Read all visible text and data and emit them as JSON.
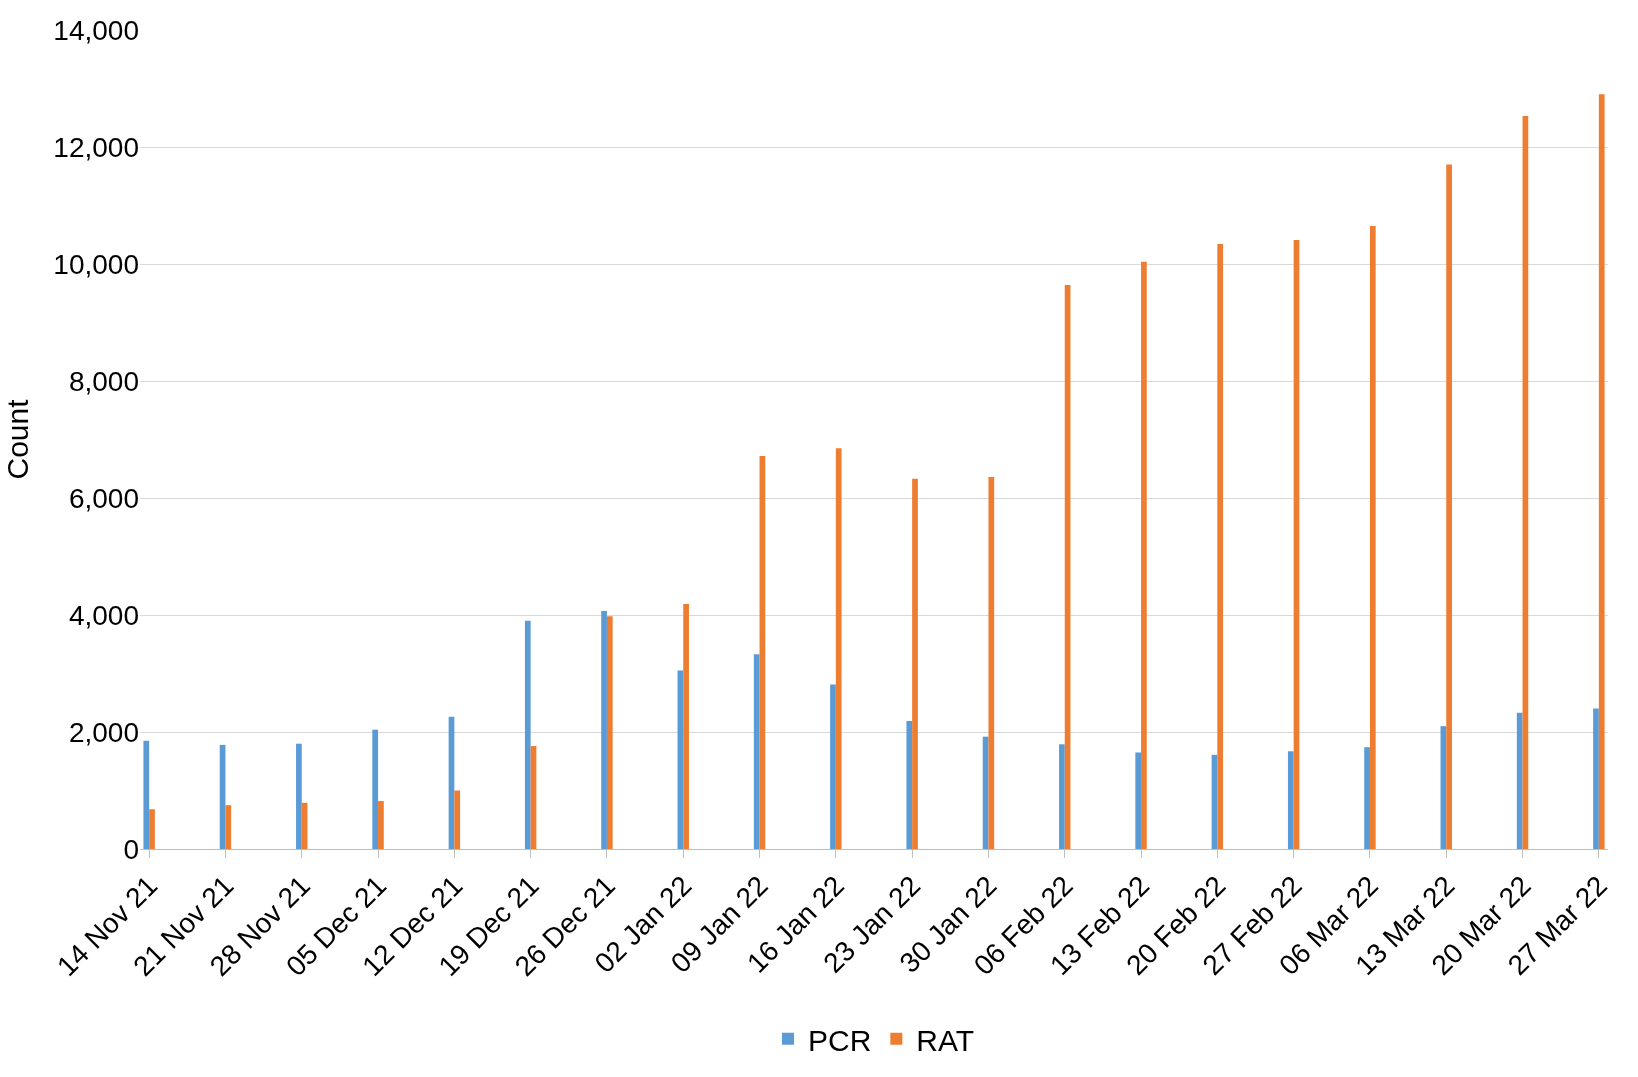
{
  "chart_data": {
    "type": "bar",
    "ylabel": "Count",
    "categories": [
      "14 Nov 21",
      "21 Nov 21",
      "28 Nov 21",
      "05 Dec 21",
      "12 Dec 21",
      "19 Dec 21",
      "26 Dec 21",
      "02 Jan 22",
      "09 Jan 22",
      "16 Jan 22",
      "23 Jan 22",
      "30 Jan 22",
      "06 Feb 22",
      "13 Feb 22",
      "20 Feb 22",
      "27 Feb 22",
      "06 Mar 22",
      "13 Mar 22",
      "20 Mar 22",
      "27 Mar 22"
    ],
    "series": [
      {
        "name": "PCR",
        "color": "#5b9bd5",
        "values": [
          1850,
          1780,
          1800,
          2040,
          2260,
          3900,
          4070,
          3050,
          3330,
          2810,
          2190,
          1920,
          1790,
          1650,
          1610,
          1670,
          1740,
          2100,
          2330,
          2400
        ]
      },
      {
        "name": "RAT",
        "color": "#ed7d31",
        "values": [
          680,
          750,
          790,
          820,
          1000,
          1760,
          3980,
          4190,
          6720,
          6850,
          6330,
          6360,
          9640,
          10040,
          10340,
          10410,
          10650,
          11700,
          12530,
          12900
        ]
      }
    ],
    "ylim": [
      0,
      14000
    ],
    "yticks": [
      0,
      {
        "value": 2000,
        "label": "2,000"
      },
      {
        "value": 4000,
        "label": "4,000"
      },
      {
        "value": 6000,
        "label": "6,000"
      },
      {
        "value": 8000,
        "label": "8,000"
      },
      {
        "value": 10000,
        "label": "10,000"
      },
      {
        "value": 12000,
        "label": "12,000"
      },
      {
        "value": 14000,
        "label": "14,000"
      }
    ],
    "grid": "y",
    "legend": "bottom"
  }
}
